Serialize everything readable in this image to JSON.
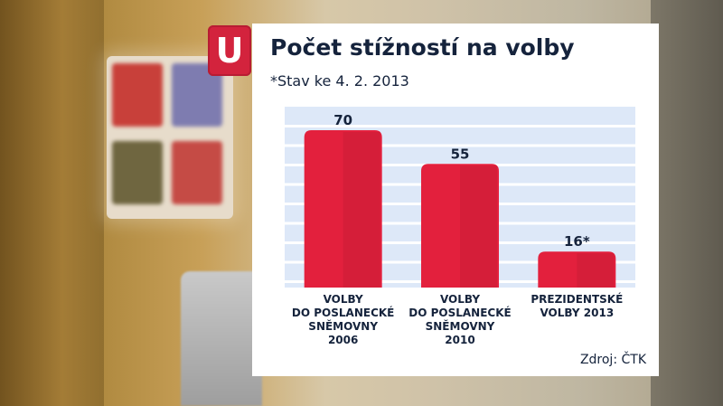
{
  "logo": {
    "letter": "U"
  },
  "chart_data": {
    "type": "bar",
    "title": "Počet stížností na volby",
    "subtitle": "*Stav ke 4. 2. 2013",
    "categories": [
      [
        "VOLBY",
        "DO POSLANECKÉ",
        "SNĚMOVNY",
        "2006"
      ],
      [
        "VOLBY",
        "DO POSLANECKÉ",
        "SNĚMOVNY",
        "2010"
      ],
      [
        "PREZIDENTSKÉ",
        "VOLBY 2013"
      ]
    ],
    "values": [
      70,
      55,
      16
    ],
    "value_labels": [
      "70",
      "55",
      "16*"
    ],
    "ylim": [
      0,
      70
    ],
    "grid": true,
    "bar_color": "#e3203d",
    "grid_background": "#dde8f8",
    "source": "Zdroj: ČTK"
  }
}
